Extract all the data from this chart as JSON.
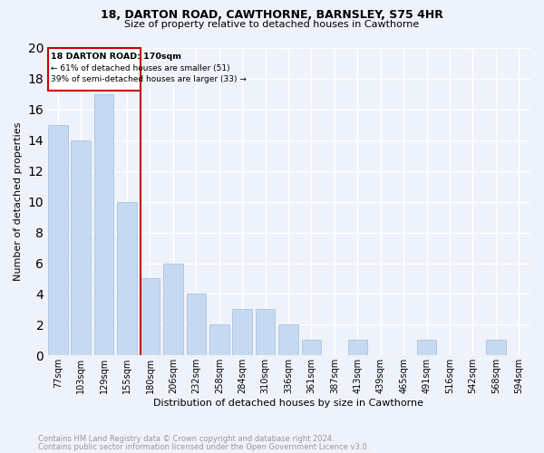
{
  "title_line1": "18, DARTON ROAD, CAWTHORNE, BARNSLEY, S75 4HR",
  "title_line2": "Size of property relative to detached houses in Cawthorne",
  "xlabel": "Distribution of detached houses by size in Cawthorne",
  "ylabel": "Number of detached properties",
  "footnote1": "Contains HM Land Registry data © Crown copyright and database right 2024.",
  "footnote2": "Contains public sector information licensed under the Open Government Licence v3.0.",
  "bar_labels": [
    "77sqm",
    "103sqm",
    "129sqm",
    "155sqm",
    "180sqm",
    "206sqm",
    "232sqm",
    "258sqm",
    "284sqm",
    "310sqm",
    "336sqm",
    "361sqm",
    "387sqm",
    "413sqm",
    "439sqm",
    "465sqm",
    "491sqm",
    "516sqm",
    "542sqm",
    "568sqm",
    "594sqm"
  ],
  "bar_values": [
    15,
    14,
    17,
    10,
    5,
    6,
    4,
    2,
    3,
    3,
    2,
    1,
    0,
    1,
    0,
    0,
    1,
    0,
    0,
    1,
    0
  ],
  "bar_color": "#c6d9f0",
  "bar_edge_color": "#a8c4e0",
  "ylim": [
    0,
    20
  ],
  "yticks": [
    0,
    2,
    4,
    6,
    8,
    10,
    12,
    14,
    16,
    18,
    20
  ],
  "annotation_text_line1": "18 DARTON ROAD: 170sqm",
  "annotation_text_line2": "← 61% of detached houses are smaller (51)",
  "annotation_text_line3": "39% of semi-detached houses are larger (33) →",
  "annotation_box_color": "#cc0000",
  "background_color": "#eef2fa",
  "grid_color": "#ffffff"
}
